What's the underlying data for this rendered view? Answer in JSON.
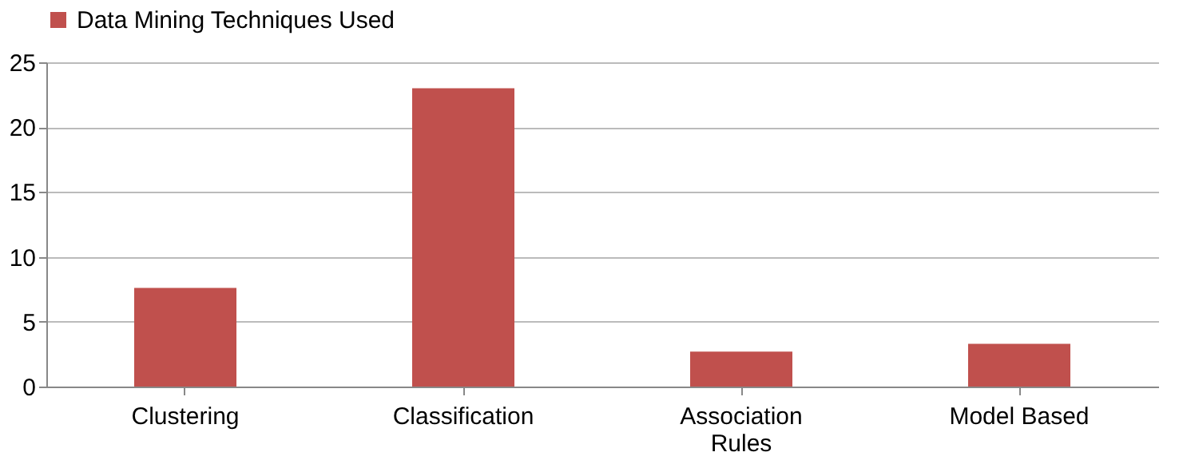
{
  "chart_data": {
    "type": "bar",
    "categories": [
      "Clustering",
      "Classification",
      "Association Rules",
      "Model Based"
    ],
    "series": [
      {
        "name": "Data Mining Techniques Used",
        "color": "#c0504d",
        "values": [
          7.6,
          23,
          2.7,
          3.3
        ]
      }
    ],
    "ylim": [
      0,
      25
    ],
    "yticks": [
      0,
      5,
      10,
      15,
      20,
      25
    ],
    "grid": "y",
    "legend": "top"
  }
}
